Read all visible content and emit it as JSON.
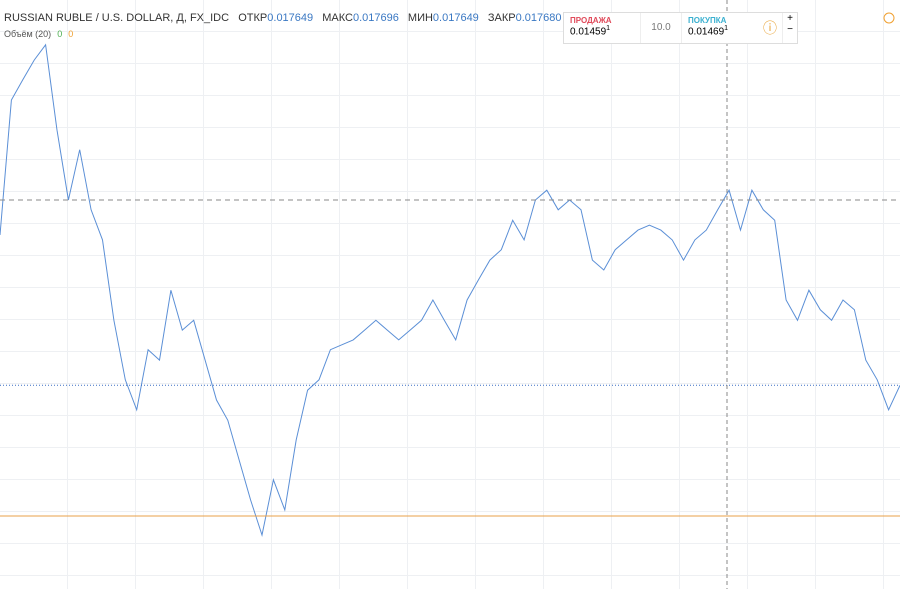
{
  "header": {
    "title": "RUSSIAN RUBLE / U.S. DOLLAR, Д, FX_IDC",
    "ohlc": [
      {
        "label": "ОТКР",
        "value": "0.017649"
      },
      {
        "label": "МАКС",
        "value": "0.017696"
      },
      {
        "label": "МИН",
        "value": "0.017649"
      },
      {
        "label": "ЗАКР",
        "value": "0.017680"
      }
    ],
    "volume": {
      "label": "Объём (20)",
      "values": [
        "0",
        "0"
      ]
    }
  },
  "trade": {
    "sell": {
      "label": "ПРОДАЖА",
      "price": "0.01459",
      "sup": "1"
    },
    "spread": "10.0",
    "buy": {
      "label": "ПОКУПКА",
      "price": "0.01469",
      "sup": "1"
    },
    "plus": "+",
    "minus": "−"
  },
  "chart_data": {
    "type": "line",
    "ylim": [
      0.01133,
      0.02093
    ],
    "series": [
      {
        "color": "#5b8fd6",
        "values": [
          0.0171,
          0.0193,
          0.01963,
          0.01995,
          0.0202,
          0.01881,
          0.01767,
          0.01849,
          0.01751,
          0.01702,
          0.01571,
          0.01474,
          0.01425,
          0.01523,
          0.01506,
          0.0162,
          0.01555,
          0.01571,
          0.01506,
          0.01441,
          0.01408,
          0.01343,
          0.01278,
          0.01221,
          0.01311,
          0.01262,
          0.01376,
          0.01457,
          0.01474,
          0.01523,
          0.01531,
          0.01539,
          0.01555,
          0.01571,
          0.01555,
          0.01539,
          0.01555,
          0.01571,
          0.01604,
          0.01571,
          0.01539,
          0.01604,
          0.01637,
          0.01669,
          0.01686,
          0.01734,
          0.01702,
          0.01767,
          0.01783,
          0.01751,
          0.01767,
          0.01751,
          0.01669,
          0.01653,
          0.01686,
          0.01702,
          0.01718,
          0.01726,
          0.01718,
          0.01702,
          0.01669,
          0.01702,
          0.01718,
          0.01751,
          0.01783,
          0.01718,
          0.01783,
          0.01751,
          0.01734,
          0.01604,
          0.01571,
          0.0162,
          0.01588,
          0.01571,
          0.01604,
          0.01588,
          0.01506,
          0.01474,
          0.01425,
          0.01465
        ]
      }
    ],
    "hlines": [
      {
        "value": 0.01767,
        "color": "#888888",
        "style": "dashed"
      },
      {
        "value": 0.01465,
        "color": "#3a6fc4",
        "style": "dotted"
      },
      {
        "value": 0.01252,
        "color": "#e8a04a",
        "style": "solid"
      }
    ]
  }
}
